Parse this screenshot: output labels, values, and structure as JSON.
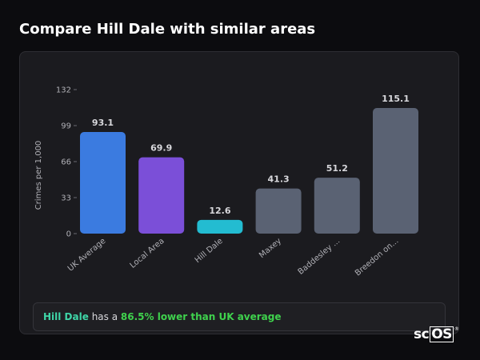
{
  "page": {
    "title": "Compare Hill Dale with similar areas"
  },
  "chart_data": {
    "type": "bar",
    "ylabel": "Crimes per 1,000",
    "xlabel": "",
    "ylim": [
      0,
      132
    ],
    "yticks": [
      0,
      33,
      66,
      99,
      132
    ],
    "grid": false,
    "categories": [
      "UK Average",
      "Local Area",
      "Hill Dale",
      "Maxey",
      "Baddesley ...",
      "Breedon on..."
    ],
    "values": [
      93.1,
      69.9,
      12.6,
      41.3,
      51.2,
      115.1
    ],
    "value_labels": [
      "93.1",
      "69.9",
      "12.6",
      "41.3",
      "51.2",
      "115.1"
    ],
    "colors": [
      "#3b7be0",
      "#7b4fd8",
      "#23bcd1",
      "#5a6273",
      "#5a6273",
      "#5a6273"
    ]
  },
  "summary": {
    "place": "Hill Dale",
    "middle": " has a ",
    "difference": "86.5% lower than UK average"
  },
  "logo": {
    "text_sc": "sc",
    "text_os": "OS",
    "reg": "®"
  }
}
